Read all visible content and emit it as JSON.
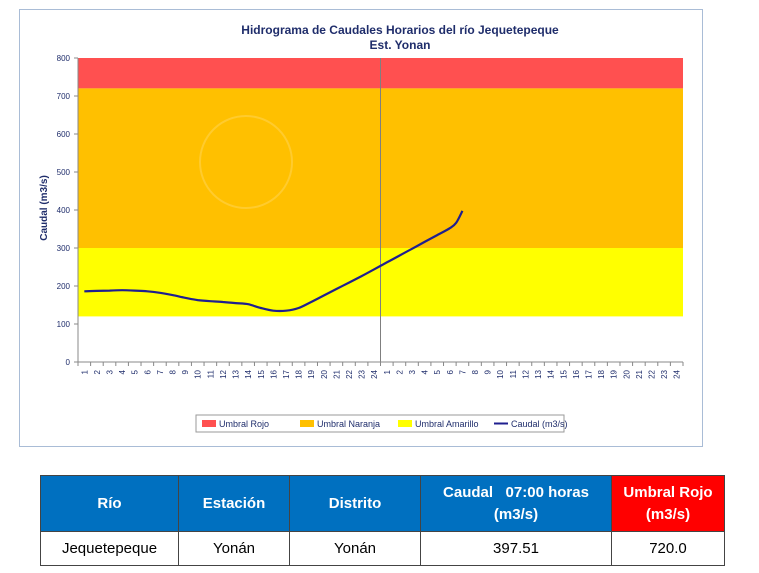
{
  "chart_data": {
    "type": "line",
    "title": "Hidrograma de Caudales Horarios del río Jequetepeque",
    "subtitle": "Est. Yonan",
    "ylabel": "Caudal  (m3/s)",
    "xlabel": "",
    "ylim": [
      0,
      800
    ],
    "yticks": [
      "0",
      "100",
      "200",
      "300",
      "400",
      "500",
      "600",
      "700",
      "800"
    ],
    "xticks": [
      "1",
      "2",
      "3",
      "4",
      "5",
      "6",
      "7",
      "8",
      "9",
      "10",
      "11",
      "12",
      "13",
      "14",
      "15",
      "16",
      "17",
      "18",
      "19",
      "20",
      "21",
      "22",
      "23",
      "24",
      "1",
      "2",
      "3",
      "4",
      "5",
      "6",
      "7",
      "8",
      "9",
      "10",
      "11",
      "12",
      "13",
      "14",
      "15",
      "16",
      "17",
      "18",
      "19",
      "20",
      "21",
      "22",
      "23",
      "24"
    ],
    "bands": [
      {
        "name": "Umbral Rojo",
        "from": 720,
        "to": 800,
        "color": "#ff5050"
      },
      {
        "name": "Umbral Naranja",
        "from": 300,
        "to": 720,
        "color": "#ffc000"
      },
      {
        "name": "Umbral Amarillo",
        "from": 120,
        "to": 300,
        "color": "#ffff00"
      }
    ],
    "series": [
      {
        "name": "Caudal (m3/s)",
        "color": "#1f1f8f",
        "x": [
          1,
          2,
          3,
          4,
          5,
          6,
          7,
          8,
          9,
          10,
          11,
          12,
          13,
          14,
          15,
          16,
          17,
          18,
          19,
          20,
          21,
          22,
          23,
          24,
          25,
          26,
          27,
          28,
          29,
          30,
          30.5,
          31
        ],
        "values": [
          186,
          187,
          188,
          189,
          188,
          186,
          182,
          176,
          169,
          163,
          160,
          158,
          155,
          152,
          142,
          135,
          135,
          142,
          158,
          175,
          192,
          209,
          226,
          244,
          262,
          280,
          298,
          316,
          334,
          352,
          366,
          397.51
        ]
      }
    ],
    "divider_x": 24.5,
    "grid": false,
    "legend_position": "bottom",
    "legend": [
      "Umbral Rojo",
      "Umbral Naranja",
      "Umbral Amarillo",
      "Caudal (m3/s)"
    ]
  },
  "table": {
    "headers": [
      {
        "label": "Río"
      },
      {
        "label": "Estación"
      },
      {
        "label": "Distrito"
      },
      {
        "label_line1": "Caudal   07:00 horas",
        "label_line2": "(m3/s)"
      },
      {
        "label_line1": "Umbral Rojo",
        "label_line2": "(m3/s)"
      }
    ],
    "row": [
      "Jequetepeque",
      "Yonán",
      "Yonán",
      "397.51",
      "720.0"
    ]
  },
  "colors": {
    "header_blue": "#0070c0",
    "header_red": "#ff0000",
    "text_dark": "#1f2d6b"
  }
}
